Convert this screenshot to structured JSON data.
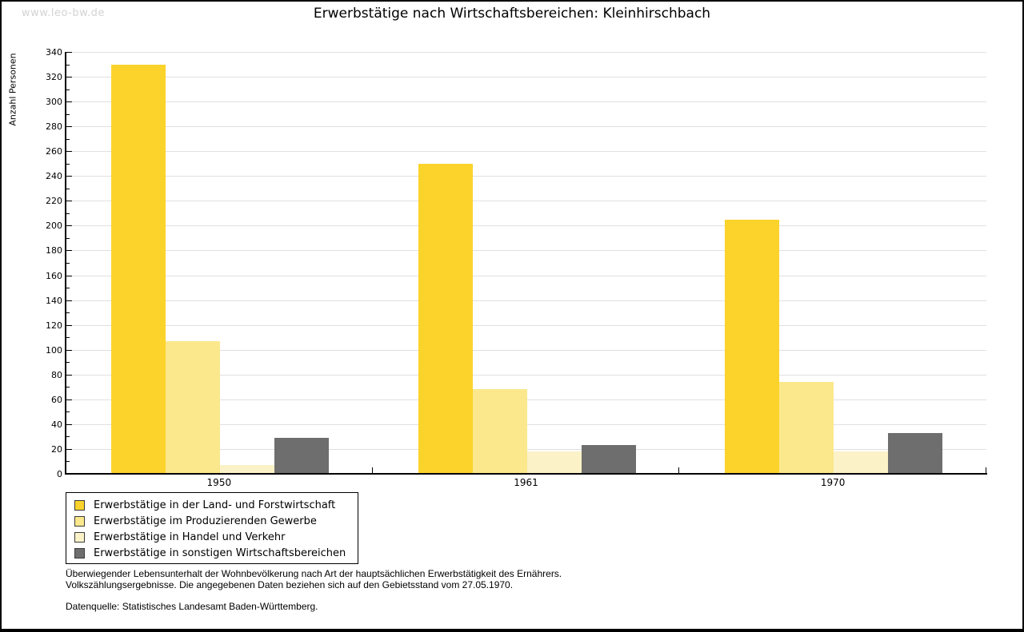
{
  "watermark": "www.leo-bw.de",
  "title": "Erwerbstätige nach Wirtschaftsbereichen: Kleinhirschbach",
  "chart_data": {
    "type": "bar",
    "title": "Erwerbstätige nach Wirtschaftsbereichen: Kleinhirschbach",
    "xlabel": "",
    "ylabel": "Anzahl Personen",
    "categories": [
      "1950",
      "1961",
      "1970"
    ],
    "series": [
      {
        "name": "Erwerbstätige in der Land- und Forstwirtschaft",
        "color": "#FBD32B",
        "values": [
          330,
          250,
          205
        ]
      },
      {
        "name": "Erwerbstätige im Produzierenden Gewerbe",
        "color": "#FBE88C",
        "values": [
          107,
          68,
          74
        ]
      },
      {
        "name": "Erwerbstätige in Handel und Verkehr",
        "color": "#FBF2C8",
        "values": [
          7,
          18,
          18
        ]
      },
      {
        "name": "Erwerbstätige in sonstigen Wirtschaftsbereichen",
        "color": "#6E6E6E",
        "values": [
          29,
          23,
          33
        ]
      }
    ],
    "ylim": [
      0,
      340
    ],
    "ytick_major": 20,
    "ytick_minor": 10,
    "grid": "horizontal-major",
    "legend_position": "bottom-left"
  },
  "footnotes": {
    "line1": "Überwiegender Lebensunterhalt der Wohnbevölkerung nach Art der hauptsächlichen Erwerbstätigkeit des Ernährers.",
    "line2": "Volkszählungsergebnisse. Die angegebenen Daten beziehen sich auf den Gebietsstand vom 27.05.1970.",
    "source": "Datenquelle: Statistisches Landesamt Baden-Württemberg."
  },
  "colors": {
    "grid": "#E0E0E0",
    "axis": "#000000",
    "watermark": "#D3D3D3",
    "background": "#FFFFFF"
  }
}
